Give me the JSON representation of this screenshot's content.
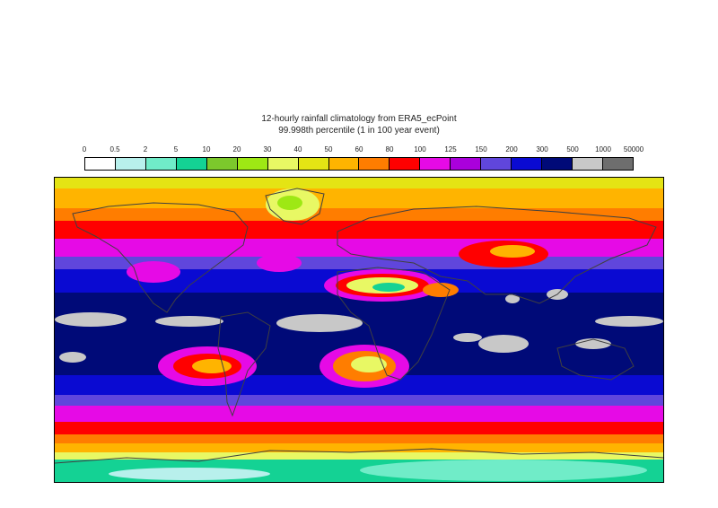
{
  "title_line1": "12-hourly rainfall climatology from ERA5_ecPoint",
  "title_line2": "99.998th percentile (1 in 100 year event)",
  "legend": {
    "ticks": [
      "0",
      "0.5",
      "2",
      "5",
      "10",
      "20",
      "30",
      "40",
      "50",
      "60",
      "80",
      "100",
      "125",
      "150",
      "200",
      "300",
      "500",
      "1000",
      "50000"
    ],
    "colors": [
      "#ffffff",
      "#b8f0ec",
      "#70ecc8",
      "#14d294",
      "#7cc82c",
      "#9ee814",
      "#e8f864",
      "#e4e414",
      "#ffb400",
      "#ff7d00",
      "#ff0000",
      "#e60ae6",
      "#aa00dc",
      "#6046dc",
      "#0a0ad2",
      "#000a78",
      "#c8c8c8",
      "#6e6e6e"
    ]
  },
  "map": {
    "coastline_color": "#404040",
    "description_icon": "world-map-icon"
  }
}
